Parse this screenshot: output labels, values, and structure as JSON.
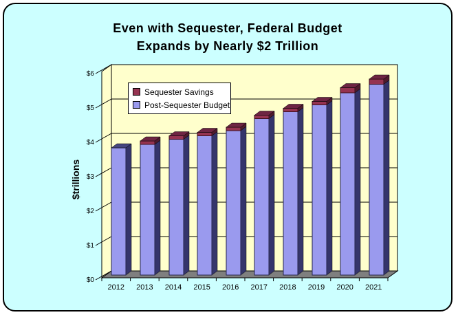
{
  "title": {
    "line1": "Even with Sequester, Federal Budget",
    "line2": "Expands by Nearly $2 Trillion"
  },
  "chart_data": {
    "type": "bar",
    "stacked": true,
    "projection": "3d",
    "title": "Even with Sequester, Federal Budget Expands by Nearly $2 Trillion",
    "xlabel": "",
    "ylabel": "$trillions",
    "ylim": [
      0,
      6
    ],
    "ytick_labels": [
      "$0",
      "$1",
      "$2",
      "$3",
      "$4",
      "$5",
      "$6"
    ],
    "grid": true,
    "legend_position": "top-left-inside",
    "categories": [
      "2012",
      "2013",
      "2014",
      "2015",
      "2016",
      "2017",
      "2018",
      "2019",
      "2020",
      "2021"
    ],
    "series": [
      {
        "name": "Post-Sequester Budget",
        "values": [
          3.7,
          3.8,
          3.95,
          4.05,
          4.2,
          4.55,
          4.75,
          4.95,
          5.3,
          5.55
        ],
        "color": "#9A9AEE",
        "side_color": "#35356B",
        "top_color": "#46467F"
      },
      {
        "name": "Sequester Savings",
        "values": [
          0,
          0.1,
          0.1,
          0.1,
          0.1,
          0.1,
          0.1,
          0.1,
          0.15,
          0.15
        ],
        "color": "#953351",
        "side_color": "#4F1B2D",
        "top_color": "#6E2543"
      }
    ],
    "wall_color": "#FFFFCC",
    "floor_color": "#7F7F7F",
    "background_color": "#CCFFFF"
  }
}
